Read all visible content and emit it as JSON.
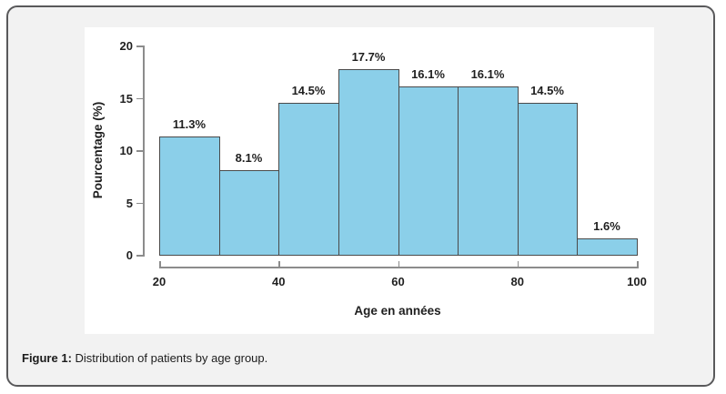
{
  "caption": {
    "label": "Figure 1:",
    "text": " Distribution of patients by age group."
  },
  "chart_data": {
    "type": "bar",
    "subtype": "histogram",
    "title": "",
    "xlabel": "Age en années",
    "ylabel": "Pourcentage (%)",
    "xlim": [
      20,
      100
    ],
    "ylim": [
      0,
      20
    ],
    "x_ticks": [
      "20",
      "40",
      "60",
      "80",
      "100"
    ],
    "x_tick_values": [
      20,
      40,
      60,
      80,
      100
    ],
    "y_ticks": [
      "0",
      "5",
      "10",
      "15",
      "20"
    ],
    "y_tick_values": [
      0,
      5,
      10,
      15,
      20
    ],
    "grid": "off",
    "legend": "none",
    "bins": [
      {
        "start": 20,
        "end": 30,
        "value": 11.3,
        "label": "11.3%"
      },
      {
        "start": 30,
        "end": 40,
        "value": 8.1,
        "label": "8.1%"
      },
      {
        "start": 40,
        "end": 50,
        "value": 14.5,
        "label": "14.5%"
      },
      {
        "start": 50,
        "end": 60,
        "value": 17.7,
        "label": "17.7%"
      },
      {
        "start": 60,
        "end": 70,
        "value": 16.1,
        "label": "16.1%"
      },
      {
        "start": 70,
        "end": 80,
        "value": 16.1,
        "label": "16.1%"
      },
      {
        "start": 80,
        "end": 90,
        "value": 14.5,
        "label": "14.5%"
      },
      {
        "start": 90,
        "end": 100,
        "value": 1.6,
        "label": "1.6%"
      }
    ],
    "colors": {
      "bar_fill": "#8BCFE9",
      "bar_border": "#4a4a4a",
      "axis": "#8c8c8c",
      "text": "#1f1f1f",
      "panel_bg": "#ffffff",
      "card_bg": "#f2f2f2",
      "card_border": "#59595b"
    }
  }
}
